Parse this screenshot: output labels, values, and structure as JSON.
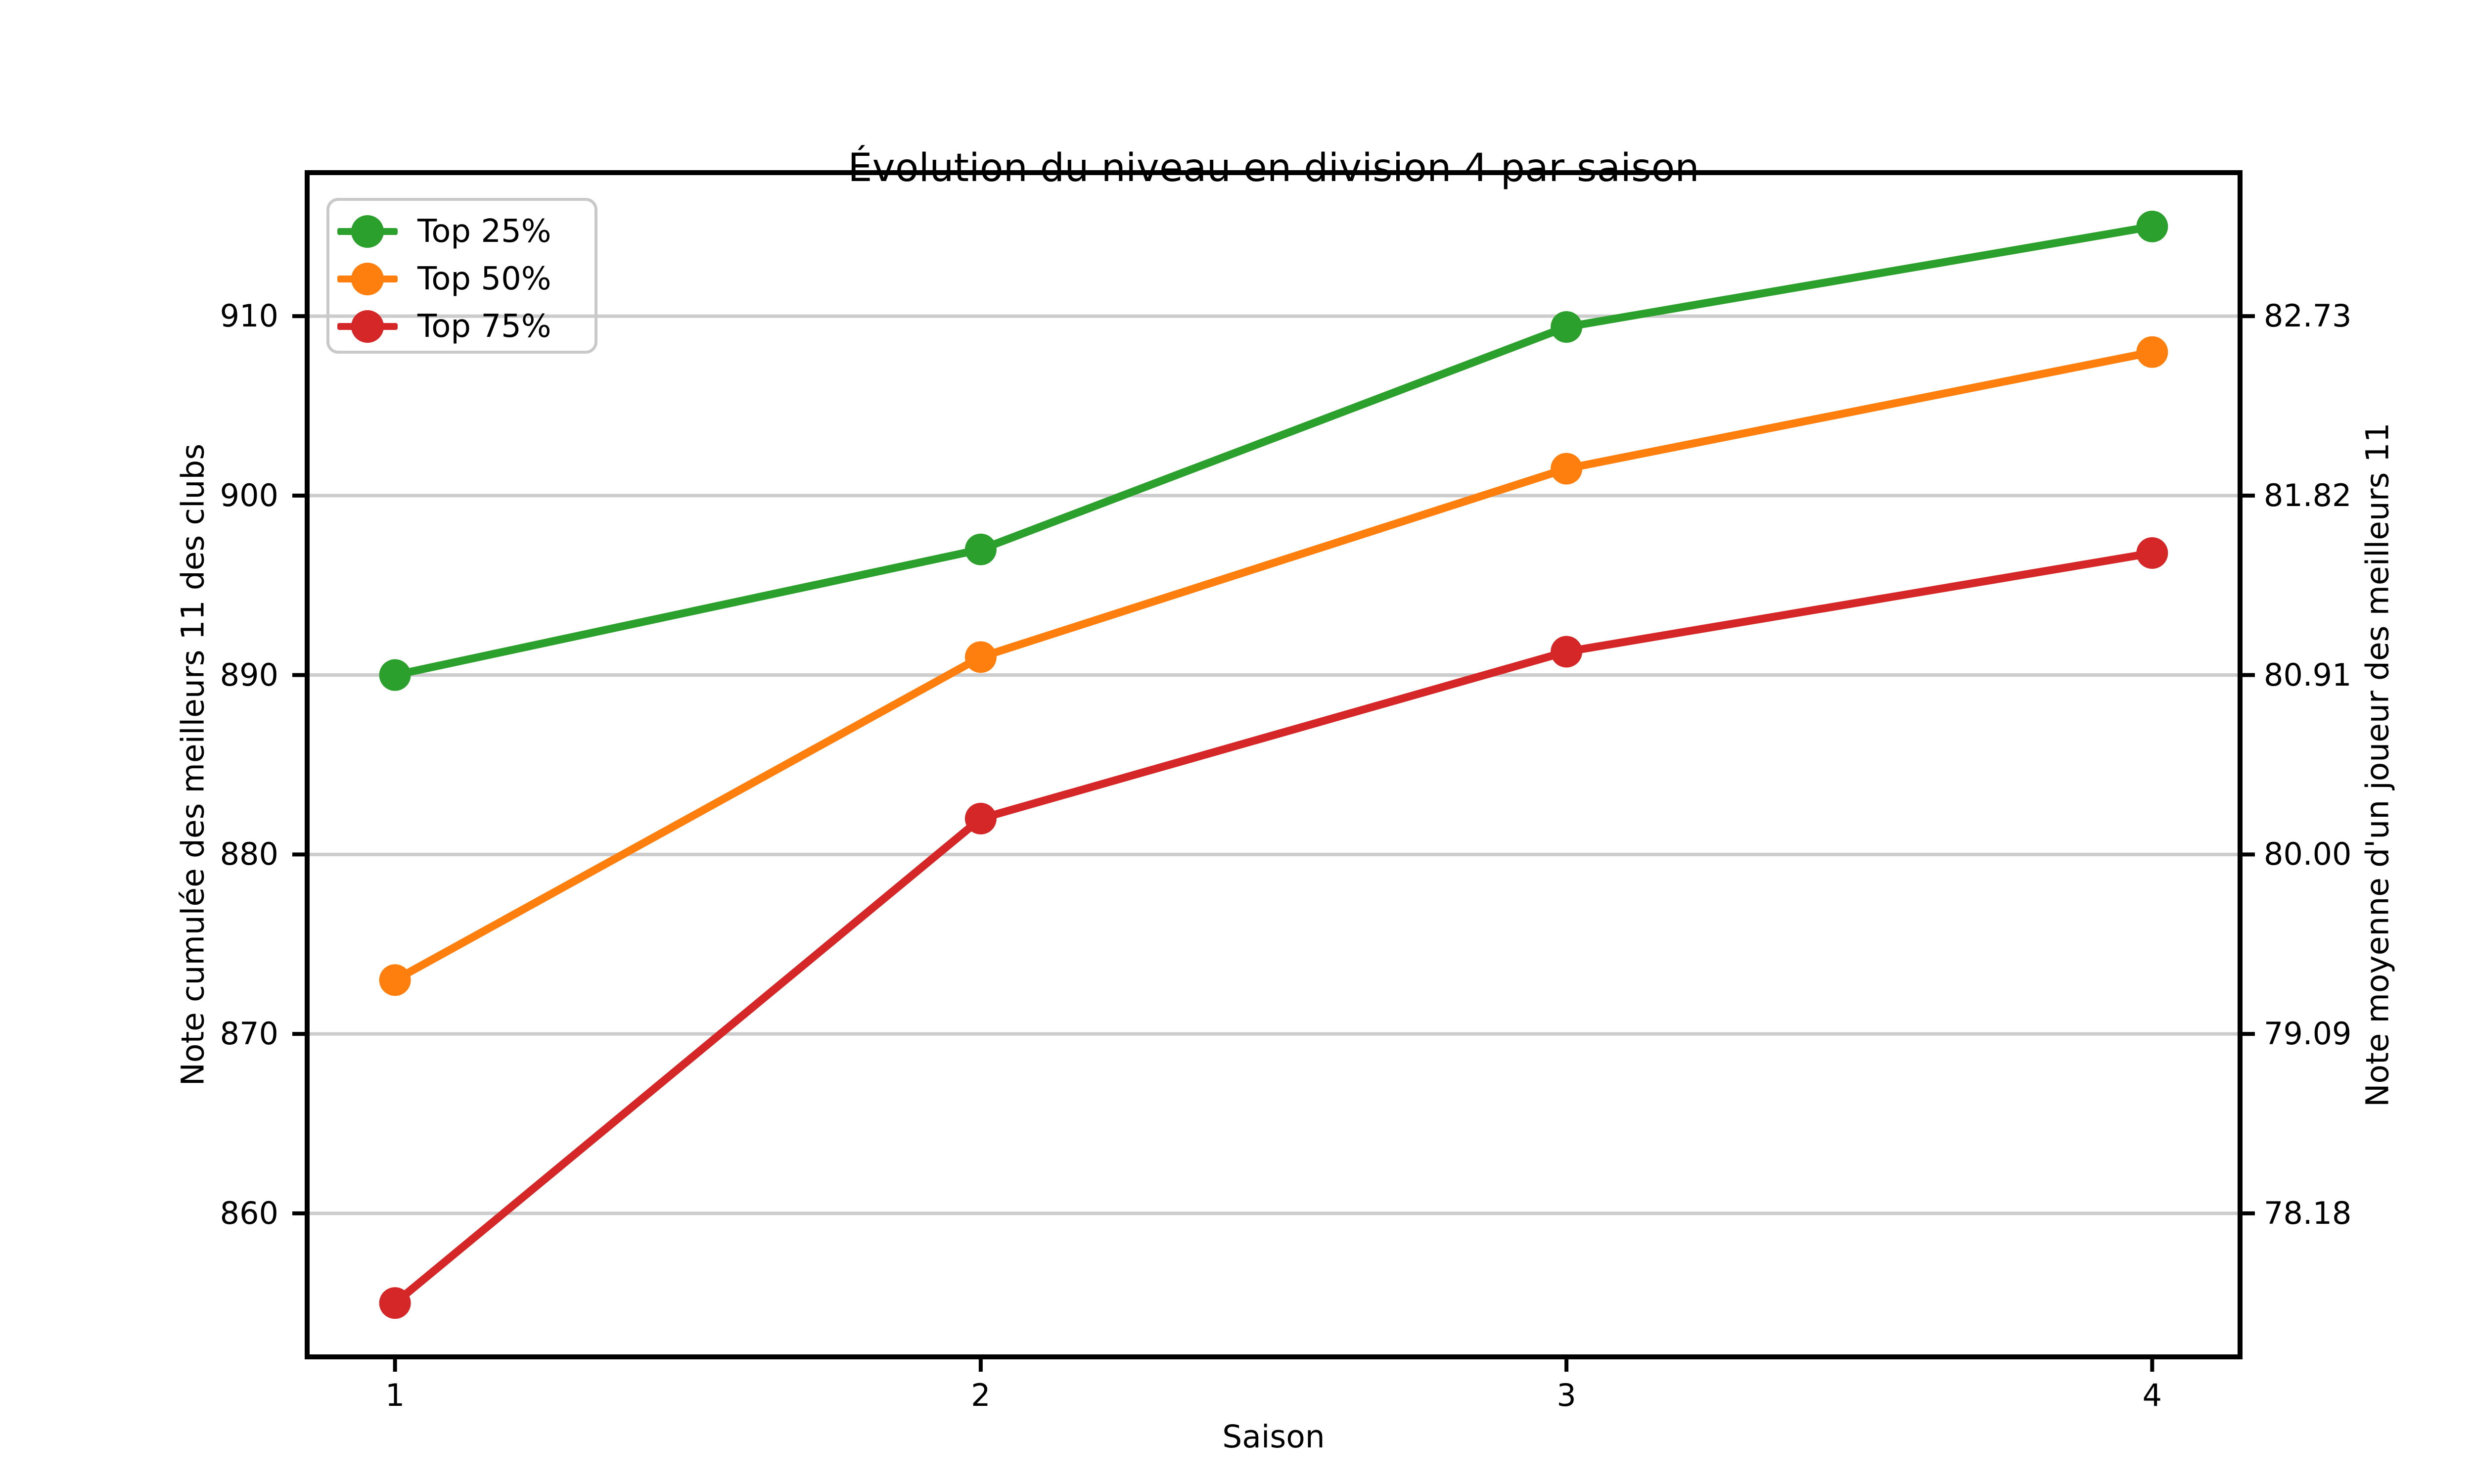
{
  "chart_data": {
    "type": "line",
    "title": "Évolution du niveau en division 4 par saison",
    "xlabel": "Saison",
    "ylabel_left": "Note cumulée des meilleurs 11 des clubs",
    "ylabel_right": "Note moyenne d'un joueur des meilleurs 11",
    "x": [
      1,
      2,
      3,
      4
    ],
    "series": [
      {
        "name": "Top 25%",
        "color": "#2ca02c",
        "values": [
          890,
          897,
          909.4,
          915
        ]
      },
      {
        "name": "Top 50%",
        "color": "#ff7f0e",
        "values": [
          873,
          891,
          901.5,
          908
        ]
      },
      {
        "name": "Top 75%",
        "color": "#d62728",
        "values": [
          855,
          882,
          891.3,
          896.8
        ]
      }
    ],
    "xlim": [
      0.85,
      4.15
    ],
    "ylim": [
      852,
      918
    ],
    "xticks": {
      "values": [
        1,
        2,
        3,
        4
      ],
      "labels": [
        "1",
        "2",
        "3",
        "4"
      ]
    },
    "yticks_left": {
      "values": [
        860,
        870,
        880,
        890,
        900,
        910
      ],
      "labels": [
        "860",
        "870",
        "880",
        "890",
        "900",
        "910"
      ]
    },
    "yticks_right": {
      "values": [
        860,
        870,
        880,
        890,
        900,
        910
      ],
      "labels": [
        "78.18",
        "79.09",
        "80.00",
        "80.91",
        "81.82",
        "82.73"
      ]
    },
    "grid": "horizontal",
    "grid_color": "#cccccc",
    "spine_color": "#000000",
    "background_color": "#ffffff",
    "legend": {
      "position": "upper left",
      "items": [
        "Top 25%",
        "Top 50%",
        "Top 75%"
      ]
    },
    "marker": "o"
  }
}
